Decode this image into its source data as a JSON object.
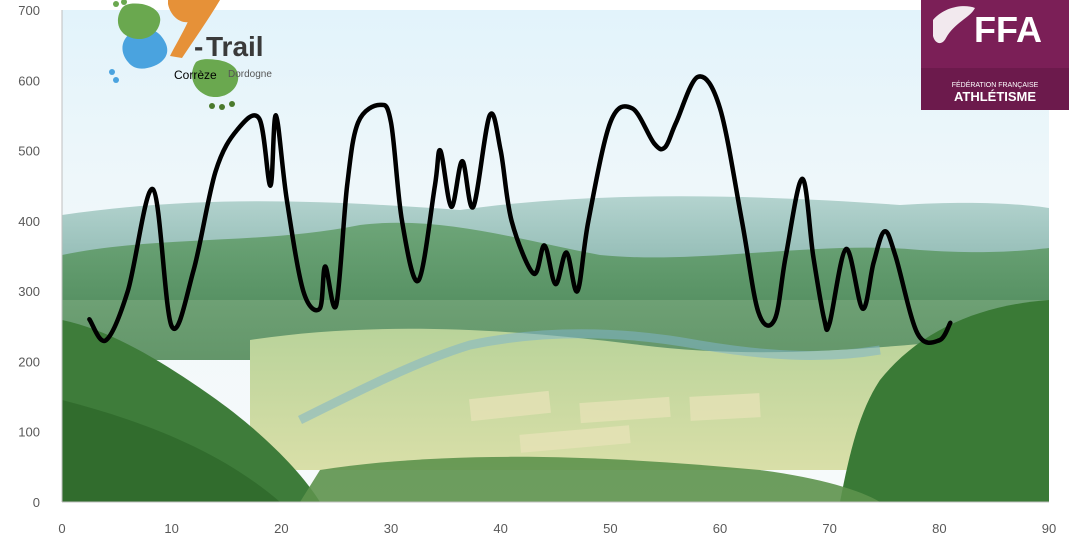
{
  "chart_data": {
    "type": "line",
    "title": "",
    "xlabel": "",
    "ylabel": "",
    "xlim": [
      0,
      90
    ],
    "ylim": [
      0,
      700
    ],
    "x_ticks": [
      0,
      10,
      20,
      30,
      40,
      50,
      60,
      70,
      80,
      90
    ],
    "y_ticks": [
      0,
      100,
      200,
      300,
      400,
      500,
      600,
      700
    ],
    "grid": false,
    "legend": "none",
    "line_color": "#000000",
    "series": [
      {
        "x": [
          2.5,
          4,
          6,
          8.3,
          10,
          12,
          14,
          16,
          18,
          19,
          19.5,
          20.5,
          22,
          23.5,
          24,
          25,
          26,
          27,
          29,
          30,
          31,
          32.5,
          34,
          34.5,
          35.5,
          36.5,
          37.5,
          39,
          40,
          41,
          43,
          44,
          45,
          46,
          47,
          48,
          50,
          52,
          54,
          55,
          56,
          58,
          60,
          62,
          63.5,
          65,
          66,
          67.5,
          68.5,
          69.5,
          70,
          71.5,
          73,
          74,
          75,
          76,
          78,
          80,
          81
        ],
        "y": [
          260,
          230,
          300,
          445,
          250,
          330,
          470,
          530,
          545,
          450,
          550,
          430,
          300,
          275,
          335,
          280,
          450,
          540,
          565,
          540,
          400,
          315,
          450,
          500,
          420,
          485,
          420,
          550,
          500,
          400,
          325,
          365,
          310,
          355,
          300,
          400,
          540,
          560,
          510,
          505,
          540,
          605,
          560,
          400,
          270,
          260,
          350,
          460,
          350,
          260,
          255,
          360,
          275,
          340,
          385,
          350,
          240,
          230,
          255
        ]
      }
    ]
  },
  "logos": {
    "left": {
      "brand": "Trail",
      "sub_main": "Corrèze",
      "sub_secondary": "Dordogne",
      "colors": [
        "#6aa84f",
        "#4aa3df",
        "#e69138",
        "#4a7a2c"
      ]
    },
    "right": {
      "brand": "FFA",
      "line1": "FÉDÉRATION FRANÇAISE",
      "line2": "ATHLÉTISME",
      "color": "#7b1f57"
    }
  },
  "background": {
    "description_colors": {
      "sky_top": "#e3f3fa",
      "sky_bottom": "#f2f8fb",
      "hills_far": "#7fb0a8",
      "hills_mid": "#5a9a5e",
      "fields": "#c9dba0",
      "forest": "#3f7f3a"
    }
  }
}
